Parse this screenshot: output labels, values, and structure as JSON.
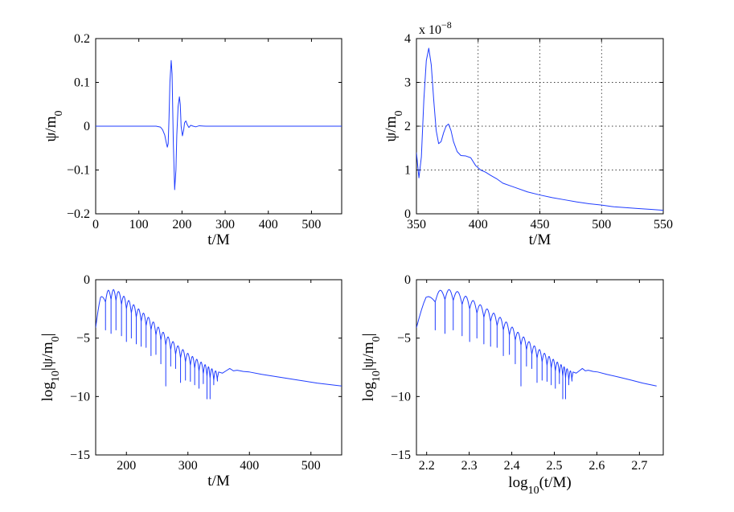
{
  "figure": {
    "colors": {
      "line": "#1f3cff",
      "axis": "#000000",
      "grid": "#000000",
      "background": "#ffffff"
    }
  },
  "chart_data": [
    {
      "type": "line",
      "id": "top-left",
      "xlabel": "t/M",
      "ylabel_main": "ψ/m",
      "ylabel_sub": "0",
      "xlim": [
        0,
        570
      ],
      "ylim": [
        -0.2,
        0.2
      ],
      "xticks": [
        0,
        100,
        200,
        300,
        400,
        500
      ],
      "xtick_labels": [
        "0",
        "100",
        "200",
        "300",
        "400",
        "500"
      ],
      "yticks": [
        -0.2,
        -0.1,
        0,
        0.1,
        0.2
      ],
      "ytick_labels": [
        "−0.2",
        "−0.1",
        "0",
        "0.1",
        "0.2"
      ],
      "grid": false,
      "series": [
        {
          "name": "ψ/m0",
          "x": [
            0,
            140,
            150,
            155,
            160,
            163,
            166,
            168,
            170,
            172,
            175,
            177,
            180,
            183,
            186,
            188,
            191,
            194,
            196,
            198,
            201,
            204,
            206,
            209,
            212,
            216,
            220,
            226,
            232,
            240,
            255,
            300,
            570
          ],
          "y": [
            0,
            0,
            -0.002,
            -0.008,
            -0.02,
            -0.035,
            -0.048,
            -0.04,
            0.02,
            0.1,
            0.15,
            0.12,
            -0.04,
            -0.145,
            -0.1,
            -0.02,
            0.045,
            0.067,
            0.05,
            0.0,
            -0.022,
            -0.008,
            0.008,
            0.012,
            0.004,
            -0.003,
            0.002,
            0.0,
            -0.0015,
            0.001,
            0.0,
            0.0,
            0.0
          ]
        }
      ]
    },
    {
      "type": "line",
      "id": "top-right",
      "xlabel": "t/M",
      "ylabel_main": "ψ/m",
      "ylabel_sub": "0",
      "y_exponent_base": "x 10",
      "y_exponent_power": "−8",
      "xlim": [
        350,
        550
      ],
      "ylim": [
        0,
        4
      ],
      "xticks": [
        350,
        400,
        450,
        500,
        550
      ],
      "xtick_labels": [
        "350",
        "400",
        "450",
        "500",
        "550"
      ],
      "yticks": [
        0,
        1,
        2,
        3,
        4
      ],
      "ytick_labels": [
        "0",
        "1",
        "2",
        "3",
        "4"
      ],
      "grid": true,
      "series": [
        {
          "name": "ψ/m0 (×10^-8)",
          "x": [
            350,
            352,
            354,
            356,
            358,
            360,
            362,
            364,
            366,
            368,
            370,
            372,
            374,
            376,
            378,
            380,
            383,
            386,
            390,
            394,
            398,
            402,
            406,
            410,
            415,
            420,
            430,
            440,
            450,
            460,
            470,
            480,
            490,
            500,
            510,
            520,
            530,
            540,
            550
          ],
          "y": [
            1.4,
            0.82,
            1.3,
            2.6,
            3.5,
            3.78,
            3.4,
            2.6,
            1.9,
            1.6,
            1.65,
            1.85,
            2.0,
            2.05,
            1.9,
            1.65,
            1.42,
            1.33,
            1.32,
            1.28,
            1.1,
            1.0,
            0.95,
            0.88,
            0.8,
            0.7,
            0.6,
            0.5,
            0.43,
            0.37,
            0.32,
            0.27,
            0.23,
            0.2,
            0.16,
            0.14,
            0.12,
            0.1,
            0.08
          ]
        }
      ]
    },
    {
      "type": "line",
      "id": "bottom-left",
      "xlabel": "t/M",
      "ylabel_main": "log",
      "ylabel_sub": "10",
      "ylabel_rest": "|ψ/m",
      "ylabel_sub2": "0",
      "ylabel_end": "|",
      "xlim": [
        150,
        550
      ],
      "ylim": [
        -15,
        0
      ],
      "xticks": [
        200,
        300,
        400,
        500
      ],
      "xtick_labels": [
        "200",
        "300",
        "400",
        "500"
      ],
      "yticks": [
        -15,
        -10,
        -5,
        0
      ],
      "ytick_labels": [
        "−15",
        "−10",
        "−5",
        "0"
      ],
      "grid": false,
      "envelope": [
        [
          150,
          -3.2
        ],
        [
          158,
          -1.5
        ],
        [
          166,
          -1.0
        ],
        [
          175,
          -0.8
        ],
        [
          185,
          -0.9
        ],
        [
          200,
          -1.6
        ],
        [
          220,
          -2.5
        ],
        [
          240,
          -3.4
        ],
        [
          260,
          -4.5
        ],
        [
          280,
          -5.5
        ],
        [
          300,
          -6.3
        ],
        [
          320,
          -7.0
        ],
        [
          335,
          -7.5
        ],
        [
          345,
          -7.8
        ],
        [
          360,
          -7.7
        ],
        [
          375,
          -7.7
        ],
        [
          400,
          -7.9
        ],
        [
          450,
          -8.3
        ],
        [
          500,
          -8.7
        ],
        [
          550,
          -9.1
        ]
      ],
      "dips": [
        [
          166,
          -4.3
        ],
        [
          175,
          -4.6
        ],
        [
          183,
          -4.3
        ],
        [
          192,
          -4.8
        ],
        [
          200,
          -5.3
        ],
        [
          208,
          -5.0
        ],
        [
          216,
          -5.5
        ],
        [
          224,
          -5.7
        ],
        [
          232,
          -5.8
        ],
        [
          240,
          -6.5
        ],
        [
          248,
          -6.4
        ],
        [
          256,
          -7.2
        ],
        [
          264,
          -9.1
        ],
        [
          272,
          -7.4
        ],
        [
          280,
          -7.6
        ],
        [
          288,
          -8.8
        ],
        [
          296,
          -8.6
        ],
        [
          304,
          -8.7
        ],
        [
          311,
          -9.0
        ],
        [
          318,
          -9.3
        ],
        [
          325,
          -8.9
        ],
        [
          331,
          -10.2
        ],
        [
          336,
          -10.2
        ],
        [
          342,
          -9.0
        ],
        [
          348,
          -8.4
        ]
      ]
    },
    {
      "type": "line",
      "id": "bottom-right",
      "xlabel_main": "log",
      "xlabel_sub": "10",
      "xlabel_rest": "(t/M)",
      "ylabel_main": "log",
      "ylabel_sub": "10",
      "ylabel_rest": "|ψ/m",
      "ylabel_sub2": "0",
      "ylabel_end": "|",
      "xlim": [
        2.176,
        2.756
      ],
      "ylim": [
        -15,
        0
      ],
      "xticks": [
        2.2,
        2.3,
        2.4,
        2.5,
        2.6,
        2.7
      ],
      "xtick_labels": [
        "2.2",
        "2.3",
        "2.4",
        "2.5",
        "2.6",
        "2.7"
      ],
      "yticks": [
        -15,
        -10,
        -5,
        0
      ],
      "ytick_labels": [
        "−15",
        "−10",
        "−5",
        "0"
      ],
      "grid": false,
      "log_of_bottom_left_x": true
    }
  ]
}
